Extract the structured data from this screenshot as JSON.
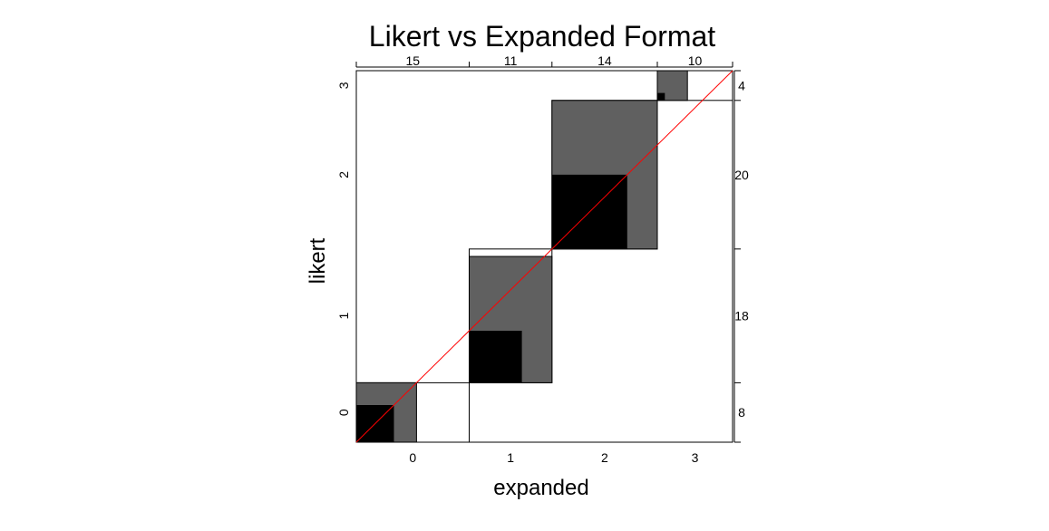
{
  "chart_data": {
    "type": "agreement-plot",
    "title": "Likert vs Expanded Format",
    "xlabel": "expanded",
    "ylabel": "likert",
    "categories": [
      "0",
      "1",
      "2",
      "3"
    ],
    "column_totals": [
      15,
      11,
      14,
      10
    ],
    "row_totals": [
      8,
      18,
      20,
      4
    ],
    "exact_agreement": [
      5,
      7,
      10,
      1
    ],
    "partial_agreement_counts": [
      8,
      17,
      20,
      4
    ],
    "colors": {
      "exact": "#000000",
      "partial": "#606060",
      "reference_line": "#ff0000"
    }
  }
}
